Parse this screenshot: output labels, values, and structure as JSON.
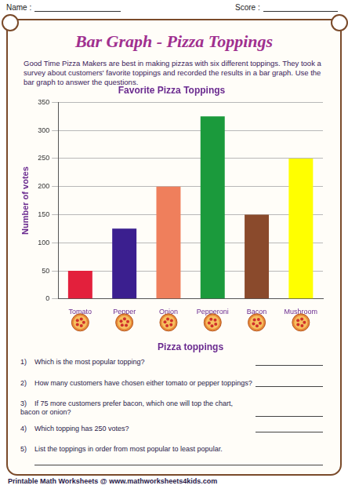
{
  "header": {
    "name_label": "Name :",
    "score_label": "Score :"
  },
  "title": "Bar Graph - Pizza Toppings",
  "intro": "Good Time Pizza Makers are best in making pizzas with six different toppings. They took a survey about customers' favorite toppings and recorded the results in a bar graph. Use the bar graph to answer the questions.",
  "chart_data": {
    "type": "bar",
    "title": "Favorite Pizza Toppings",
    "x_label": "Pizza toppings",
    "y_label": "Number of votes",
    "categories": [
      "Tomato",
      "Pepper",
      "Onion",
      "Pepperoni",
      "Bacon",
      "Mushroom"
    ],
    "values": [
      50,
      125,
      200,
      325,
      150,
      250
    ],
    "colors": [
      "#e3203c",
      "#3b1f8f",
      "#ef7f5c",
      "#1b9a3c",
      "#8a4a2c",
      "#ffff00"
    ],
    "ylim": [
      0,
      350
    ],
    "yticks": [
      0,
      50,
      100,
      150,
      200,
      250,
      300,
      350
    ],
    "grid": true
  },
  "questions": [
    {
      "number": "1)",
      "text": "Which is the most popular topping?"
    },
    {
      "number": "2)",
      "text": "How many customers have chosen either tomato or pepper toppings?"
    },
    {
      "number": "3)",
      "text": "If 75 more customers prefer bacon, which one will top the chart, bacon or onion?"
    },
    {
      "number": "4)",
      "text": "Which topping has 250 votes?"
    },
    {
      "number": "5)",
      "text": "List the toppings in order from most popular to least popular."
    }
  ],
  "footer": "Printable Math Worksheets @ www.mathworksheets4kids.com"
}
